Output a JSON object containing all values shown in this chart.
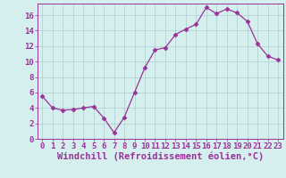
{
  "x": [
    0,
    1,
    2,
    3,
    4,
    5,
    6,
    7,
    8,
    9,
    10,
    11,
    12,
    13,
    14,
    15,
    16,
    17,
    18,
    19,
    20,
    21,
    22,
    23
  ],
  "y": [
    5.5,
    4.0,
    3.7,
    3.8,
    4.0,
    4.2,
    2.7,
    0.8,
    2.8,
    6.0,
    9.2,
    11.5,
    11.8,
    13.5,
    14.2,
    14.8,
    17.0,
    16.2,
    16.8,
    16.3,
    15.2,
    12.3,
    10.7,
    10.2
  ],
  "line_color": "#993399",
  "marker": "D",
  "marker_size": 2.5,
  "bg_color": "#d5eeee",
  "grid_color": "#b0cccc",
  "xlabel": "Windchill (Refroidissement éolien,°C)",
  "xlabel_color": "#993399",
  "xlabel_fontsize": 7.5,
  "tick_color": "#993399",
  "tick_fontsize": 6.5,
  "ylim": [
    0,
    17.5
  ],
  "yticks": [
    0,
    2,
    4,
    6,
    8,
    10,
    12,
    14,
    16
  ],
  "xlim": [
    -0.5,
    23.5
  ],
  "xticks": [
    0,
    1,
    2,
    3,
    4,
    5,
    6,
    7,
    8,
    9,
    10,
    11,
    12,
    13,
    14,
    15,
    16,
    17,
    18,
    19,
    20,
    21,
    22,
    23
  ]
}
